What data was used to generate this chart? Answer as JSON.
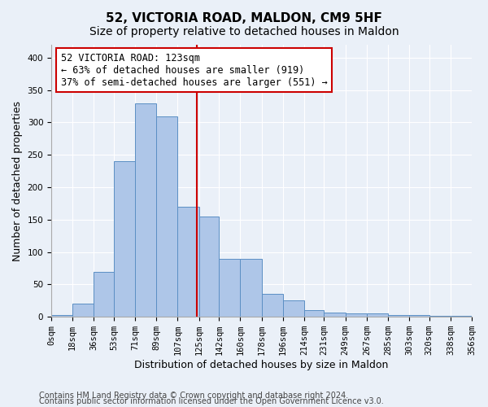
{
  "title1": "52, VICTORIA ROAD, MALDON, CM9 5HF",
  "title2": "Size of property relative to detached houses in Maldon",
  "xlabel": "Distribution of detached houses by size in Maldon",
  "ylabel": "Number of detached properties",
  "annotation_line1": "52 VICTORIA ROAD: 123sqm",
  "annotation_line2": "← 63% of detached houses are smaller (919)",
  "annotation_line3": "37% of semi-detached houses are larger (551) →",
  "property_size": 123,
  "bar_edges": [
    0,
    18,
    36,
    53,
    71,
    89,
    107,
    125,
    142,
    160,
    178,
    196,
    214,
    231,
    249,
    267,
    285,
    303,
    320,
    338,
    356
  ],
  "bar_heights": [
    3,
    20,
    70,
    240,
    330,
    310,
    170,
    155,
    90,
    90,
    35,
    25,
    10,
    7,
    5,
    5,
    3,
    3,
    1,
    1
  ],
  "bar_color": "#aec6e8",
  "bar_edge_color": "#5b8fc4",
  "vline_color": "#cc0000",
  "vline_x": 123,
  "ylim": [
    0,
    420
  ],
  "yticks": [
    0,
    50,
    100,
    150,
    200,
    250,
    300,
    350,
    400
  ],
  "background_color": "#eaf0f8",
  "footer1": "Contains HM Land Registry data © Crown copyright and database right 2024.",
  "footer2": "Contains public sector information licensed under the Open Government Licence v3.0.",
  "grid_color": "#ffffff",
  "title_fontsize": 11,
  "subtitle_fontsize": 10,
  "axis_label_fontsize": 9,
  "tick_fontsize": 7.5,
  "footer_fontsize": 7,
  "annotation_fontsize": 8.5
}
